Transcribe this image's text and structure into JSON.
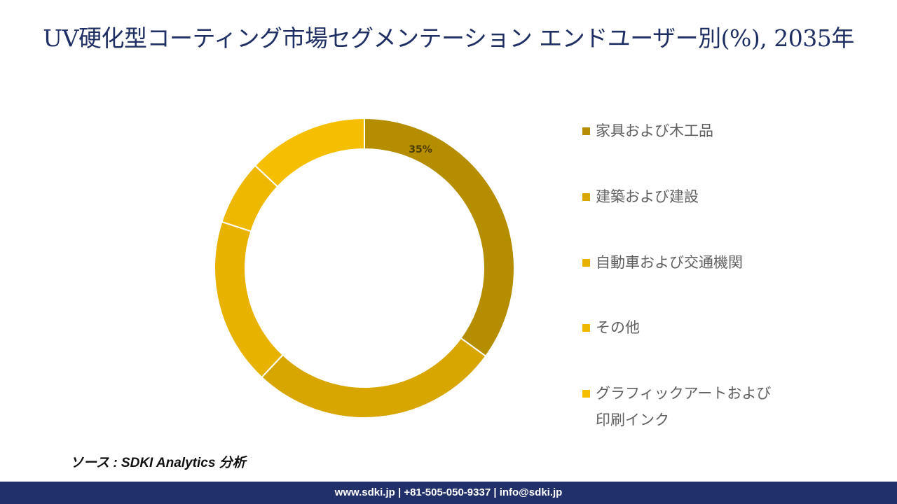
{
  "header": {
    "title": "UV硬化型コーティング市場セグメンテーション エンドユーザー別(%), 2035年"
  },
  "chart_data": {
    "type": "pie",
    "variant": "donut",
    "categories": [
      "家具および木工品",
      "建築および建設",
      "自動車および交通機関",
      "その他",
      "グラフィックアートおよび印刷インク"
    ],
    "values": [
      35,
      27,
      18,
      7,
      13
    ],
    "data_labels": [
      "35%",
      "",
      "",
      "",
      ""
    ],
    "colors": [
      "#b58e00",
      "#d7a600",
      "#e8b300",
      "#eeb800",
      "#f5bf00"
    ],
    "legend_position": "right"
  },
  "source": {
    "text": "ソース : SDKI Analytics 分析"
  },
  "footer": {
    "text": "www.sdki.jp | +81-505-050-9337 | info@sdki.jp"
  }
}
